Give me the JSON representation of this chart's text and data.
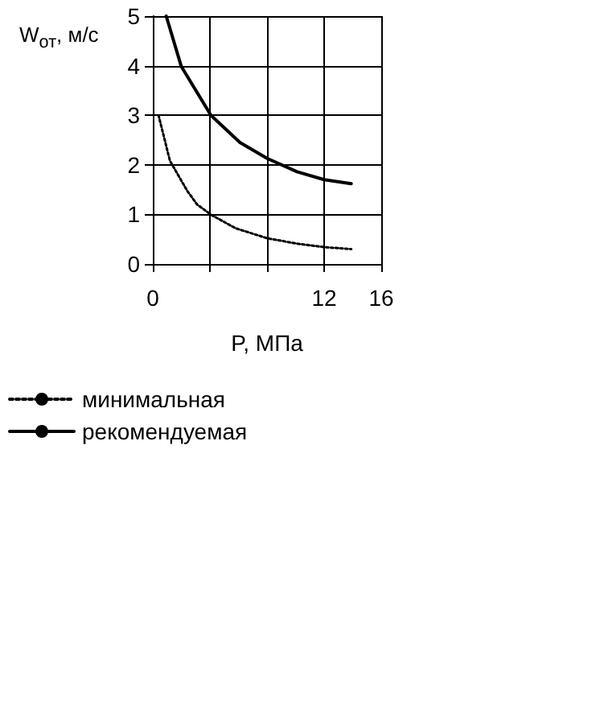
{
  "chart_data": {
    "type": "line",
    "xlabel": "P, МПа",
    "ylabel": "W$_{от}$, м/с",
    "xlim": [
      0,
      16
    ],
    "xticks": [
      0,
      {
        "value": 4,
        "label": null
      },
      {
        "value": 8,
        "label": null
      },
      12,
      16
    ],
    "ylim": [
      0,
      5
    ],
    "yticks": [
      0,
      1,
      2,
      3,
      4,
      5
    ],
    "grid": true,
    "legend": "bottom left",
    "marker": "none",
    "series": [
      {
        "name": "минимальная",
        "color": "#000000",
        "line_style": "dotted",
        "x": [
          0.4,
          1.2,
          2.4,
          3.1,
          4.1,
          5.8,
          8,
          10.1,
          12,
          13.9
        ],
        "values": [
          3.0,
          2.08,
          1.48,
          1.2,
          0.99,
          0.72,
          0.52,
          0.41,
          0.34,
          0.3
        ]
      },
      {
        "name": "рекомендуемая",
        "color": "#000000",
        "line_style": "solid",
        "x": [
          0.94,
          2,
          4.07,
          6.1,
          8,
          10.1,
          12,
          13.9
        ],
        "values": [
          5,
          3.98,
          3.0,
          2.45,
          2.13,
          1.86,
          1.7,
          1.62
        ]
      }
    ]
  }
}
